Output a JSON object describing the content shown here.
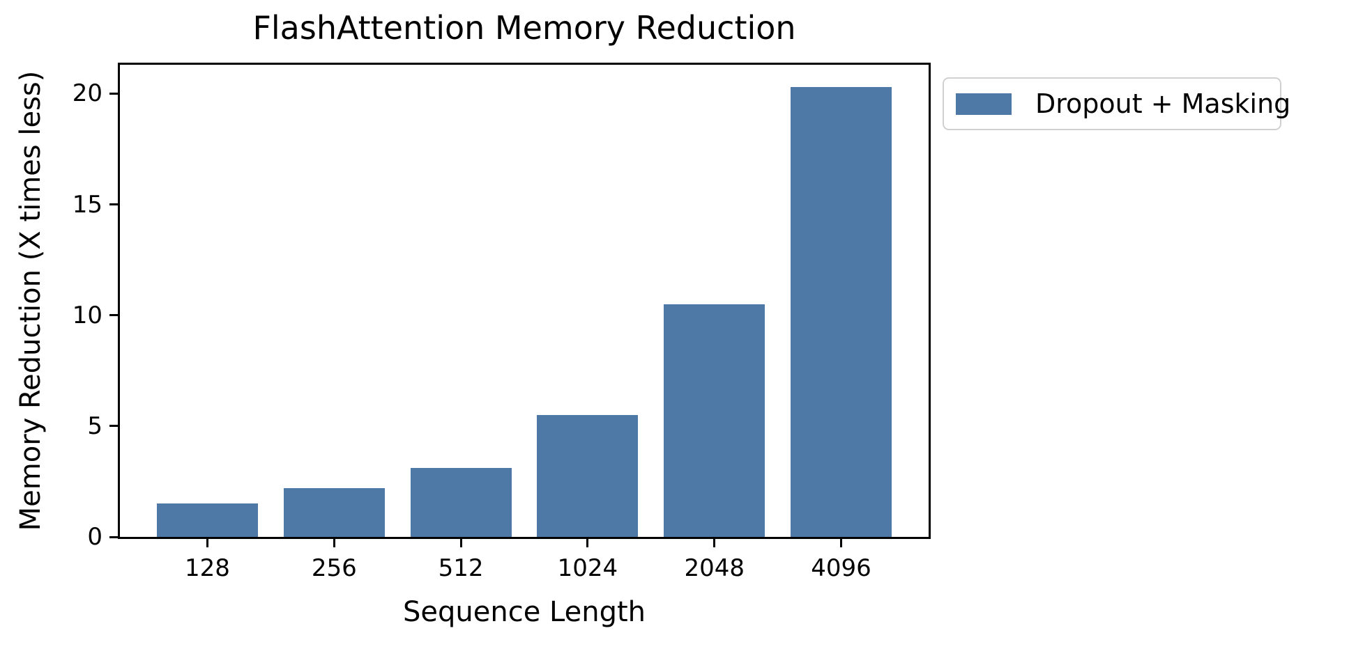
{
  "chart_data": {
    "type": "bar",
    "title": "FlashAttention Memory Reduction",
    "xlabel": "Sequence Length",
    "ylabel": "Memory Reduction (X times less)",
    "categories": [
      "128",
      "256",
      "512",
      "1024",
      "2048",
      "4096"
    ],
    "series": [
      {
        "name": "Dropout + Masking",
        "values": [
          1.5,
          2.2,
          3.1,
          5.5,
          10.5,
          20.3
        ]
      }
    ],
    "ylim": [
      0,
      21.3
    ],
    "yticks": [
      0,
      5,
      10,
      15,
      20
    ],
    "grid": false,
    "legend_position": "outside-upper-right",
    "bar_color": "#4e79a7",
    "axis_color": "#000000",
    "background_color": "#ffffff",
    "legend_border_color": "#d0d0d0"
  }
}
